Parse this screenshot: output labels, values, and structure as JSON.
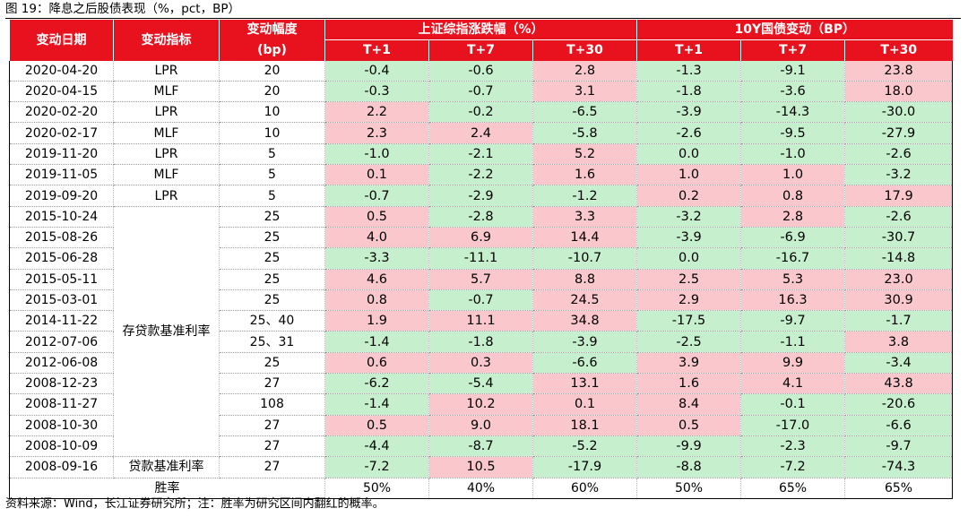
{
  "title": "图 19：降息之后股债表现（%，pct，BP）",
  "headers": {
    "date": "变动日期",
    "indicator": "变动指标",
    "magnitude_line1": "变动幅度",
    "magnitude_line2": "(bp)",
    "stock_group": "上证综指涨跌幅（%）",
    "bond_group": "10Y国债变动（BP）",
    "sub": [
      "T+1",
      "T+7",
      "T+30",
      "T+1",
      "T+7",
      "T+30"
    ]
  },
  "rows": [
    {
      "date": "2020-04-20",
      "indicator": "LPR",
      "mag": "20",
      "vals": [
        "-0.4",
        "-0.6",
        "2.8",
        "-1.3",
        "-9.1",
        "23.8"
      ]
    },
    {
      "date": "2020-04-15",
      "indicator": "MLF",
      "mag": "20",
      "vals": [
        "-0.3",
        "-0.7",
        "3.1",
        "-1.8",
        "-3.6",
        "18.0"
      ]
    },
    {
      "date": "2020-02-20",
      "indicator": "LPR",
      "mag": "10",
      "vals": [
        "2.2",
        "-0.2",
        "-6.5",
        "-3.9",
        "-14.3",
        "-30.0"
      ]
    },
    {
      "date": "2020-02-17",
      "indicator": "MLF",
      "mag": "10",
      "vals": [
        "2.3",
        "2.4",
        "-5.8",
        "-2.6",
        "-9.5",
        "-27.9"
      ]
    },
    {
      "date": "2019-11-20",
      "indicator": "LPR",
      "mag": "5",
      "vals": [
        "-1.0",
        "-2.1",
        "5.2",
        "0.0",
        "-1.0",
        "-2.6"
      ]
    },
    {
      "date": "2019-11-05",
      "indicator": "MLF",
      "mag": "5",
      "vals": [
        "0.1",
        "-2.2",
        "1.6",
        "1.0",
        "1.0",
        "-3.2"
      ]
    },
    {
      "date": "2019-09-20",
      "indicator": "LPR",
      "mag": "5",
      "vals": [
        "-0.7",
        "-2.9",
        "-1.2",
        "0.2",
        "0.8",
        "17.9"
      ]
    },
    {
      "date": "2015-10-24",
      "indicator": "",
      "mag": "25",
      "vals": [
        "0.5",
        "-2.8",
        "3.3",
        "-3.2",
        "2.8",
        "-2.6"
      ]
    },
    {
      "date": "2015-08-26",
      "indicator": "",
      "mag": "25",
      "vals": [
        "4.0",
        "6.9",
        "14.4",
        "-3.9",
        "-6.9",
        "-30.7"
      ]
    },
    {
      "date": "2015-06-28",
      "indicator": "",
      "mag": "25",
      "vals": [
        "-3.3",
        "-11.1",
        "-10.7",
        "0.0",
        "-16.7",
        "-14.8"
      ]
    },
    {
      "date": "2015-05-11",
      "indicator": "",
      "mag": "25",
      "vals": [
        "4.6",
        "5.7",
        "8.8",
        "2.5",
        "5.3",
        "23.0"
      ]
    },
    {
      "date": "2015-03-01",
      "indicator": "",
      "mag": "25",
      "vals": [
        "0.8",
        "-0.7",
        "24.5",
        "2.9",
        "16.3",
        "30.9"
      ]
    },
    {
      "date": "2014-11-22",
      "indicator": "",
      "mag": "25、40",
      "vals": [
        "1.9",
        "11.1",
        "34.8",
        "-17.5",
        "-9.7",
        "-1.7"
      ]
    },
    {
      "date": "2012-07-06",
      "indicator": "",
      "mag": "25、31",
      "vals": [
        "-1.4",
        "-1.8",
        "-3.9",
        "-2.5",
        "-1.1",
        "3.8"
      ]
    },
    {
      "date": "2012-06-08",
      "indicator": "",
      "mag": "25",
      "vals": [
        "0.6",
        "0.3",
        "-6.6",
        "3.9",
        "9.9",
        "-3.4"
      ]
    },
    {
      "date": "2008-12-23",
      "indicator": "",
      "mag": "27",
      "vals": [
        "-6.2",
        "-5.4",
        "13.1",
        "1.6",
        "4.1",
        "43.8"
      ]
    },
    {
      "date": "2008-11-27",
      "indicator": "",
      "mag": "108",
      "vals": [
        "-1.4",
        "10.2",
        "0.1",
        "8.4",
        "-0.1",
        "-20.6"
      ]
    },
    {
      "date": "2008-10-30",
      "indicator": "",
      "mag": "27",
      "vals": [
        "0.5",
        "9.0",
        "18.1",
        "0.5",
        "-17.0",
        "-6.6"
      ]
    },
    {
      "date": "2008-10-09",
      "indicator": "",
      "mag": "27",
      "vals": [
        "-4.4",
        "-8.7",
        "-5.2",
        "-9.9",
        "-2.3",
        "-9.7"
      ]
    },
    {
      "date": "2008-09-16",
      "indicator": "贷款基准利率",
      "mag": "27",
      "vals": [
        "-7.2",
        "10.5",
        "-17.9",
        "-8.8",
        "-7.2",
        "-74.3"
      ]
    }
  ],
  "merged_indicator": "存贷款基准利率",
  "summary": {
    "label": "胜率",
    "vals": [
      "50%",
      "40%",
      "60%",
      "50%",
      "65%",
      "65%"
    ]
  },
  "source": "资料来源：Wind，长江证券研究所；注：胜率为研究区间内翻红的概率。",
  "colors": {
    "header_bg": "#e8121e",
    "up": "#f9c7cc",
    "down": "#c6efcd"
  }
}
